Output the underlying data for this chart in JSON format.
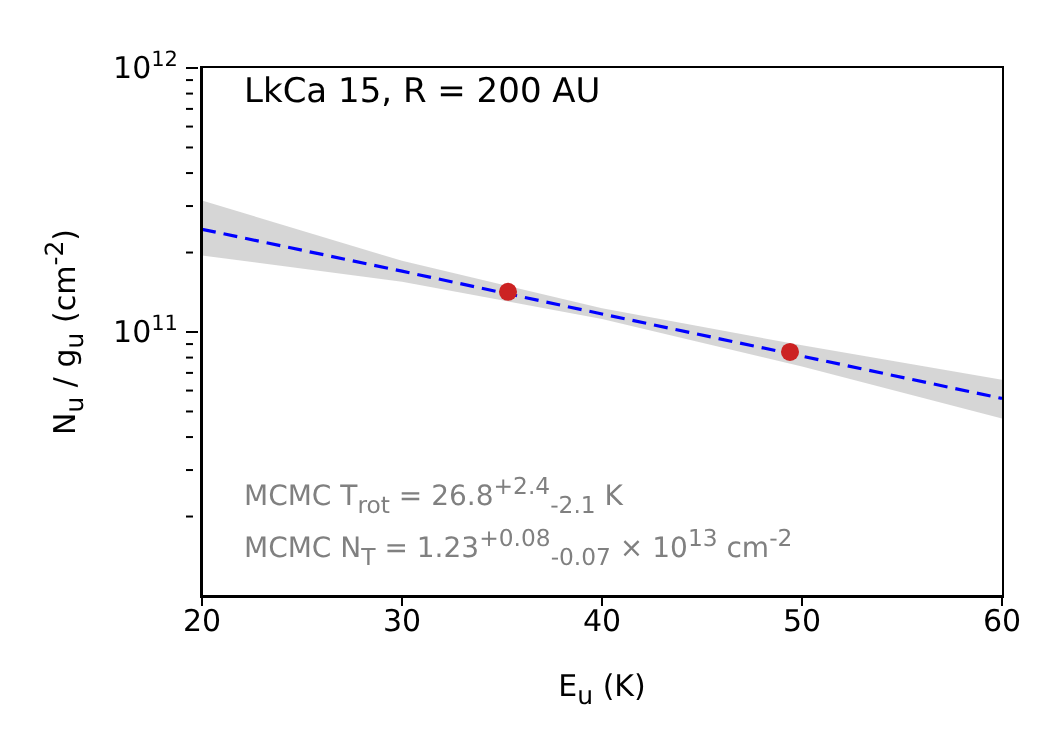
{
  "chart_data": {
    "type": "line",
    "title": "LkCa 15, R = 200 AU",
    "xlabel": "E$_{u}$ (K)",
    "ylabel": "N$_{u}$ / g$_{u}$ (cm$^{-2}$)",
    "annotations": [
      "MCMC T$_{rot}$ = 26.8$^{+2.4}$$_{-2.1}$ K",
      "MCMC N$_{T}$ = 1.23$^{+0.08}$$_{-0.07}$ × 10$^{13}$ cm$^{-2}$"
    ],
    "series": [
      {
        "color": "#0000ff",
        "line_style": "dashed",
        "marker": "none",
        "x": [
          20,
          30,
          40,
          50,
          60
        ],
        "values": [
          245000000000.0,
          170000000000.0,
          117000000000.0,
          81000000000.0,
          56000000000.0
        ],
        "lower": [
          195000000000.0,
          155000000000.0,
          112000000000.0,
          74000000000.0,
          47000000000.0
        ],
        "upper": [
          315000000000.0,
          186000000000.0,
          123000000000.0,
          89000000000.0,
          66000000000.0
        ]
      },
      {
        "type": "scatter",
        "color": "#cc2222",
        "marker": "circle",
        "x": [
          35.3,
          49.4
        ],
        "values": [
          142000000000.0,
          84000000000.0
        ]
      }
    ],
    "log": true,
    "grid": false,
    "xlim": [
      20,
      60
    ],
    "xticks": [
      20,
      30,
      40,
      50,
      60
    ],
    "ylim": [
      10000000000.0,
      1000000000000.0
    ],
    "yticks": [
      {
        "value": 20000000000.0,
        "label": null
      },
      {
        "value": 30000000000.0,
        "label": null
      },
      {
        "value": 40000000000.0,
        "label": null
      },
      {
        "value": 50000000000.0,
        "label": null
      },
      {
        "value": 60000000000.0,
        "label": null
      },
      {
        "value": 70000000000.0,
        "label": null
      },
      {
        "value": 80000000000.0,
        "label": null
      },
      {
        "value": 90000000000.0,
        "label": null
      },
      {
        "value": 100000000000.0,
        "label": "10$^{11}$"
      },
      {
        "value": 200000000000.0,
        "label": null
      },
      {
        "value": 300000000000.0,
        "label": null
      },
      {
        "value": 400000000000.0,
        "label": null
      },
      {
        "value": 500000000000.0,
        "label": null
      },
      {
        "value": 600000000000.0,
        "label": null
      },
      {
        "value": 700000000000.0,
        "label": null
      },
      {
        "value": 800000000000.0,
        "label": null
      },
      {
        "value": 900000000000.0,
        "label": null
      },
      {
        "value": 1000000000000.0,
        "label": "10$^{12}$"
      }
    ]
  }
}
